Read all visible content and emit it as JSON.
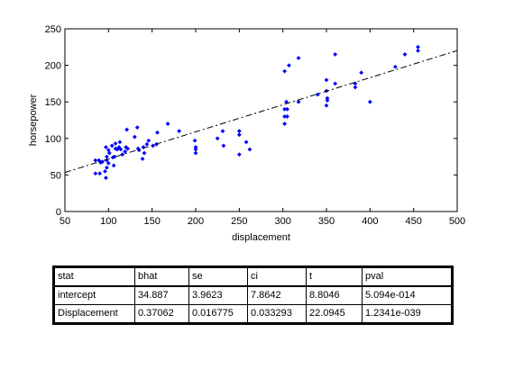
{
  "chart_data": {
    "type": "scatter",
    "xlabel": "displacement",
    "ylabel": "horsepower",
    "xlim": [
      50,
      500
    ],
    "ylim": [
      0,
      250
    ],
    "xticks": [
      50,
      100,
      150,
      200,
      250,
      300,
      350,
      400,
      450,
      500
    ],
    "yticks": [
      0,
      50,
      100,
      150,
      200,
      250
    ],
    "grid": false,
    "point_color": "#0000ff",
    "fit_line_color": "#000000",
    "fit_line_style": "dash-dot",
    "fit_line": {
      "intercept": 34.887,
      "slope": 0.37062
    },
    "points": [
      [
        85,
        52
      ],
      [
        85,
        70
      ],
      [
        89,
        70
      ],
      [
        90,
        52
      ],
      [
        91,
        67
      ],
      [
        93,
        68
      ],
      [
        96,
        55
      ],
      [
        97,
        46
      ],
      [
        97,
        88
      ],
      [
        98,
        60
      ],
      [
        98,
        70
      ],
      [
        98,
        75
      ],
      [
        100,
        66
      ],
      [
        100,
        84
      ],
      [
        101,
        80
      ],
      [
        104,
        90
      ],
      [
        105,
        74
      ],
      [
        106,
        63
      ],
      [
        107,
        75
      ],
      [
        108,
        86
      ],
      [
        108,
        93
      ],
      [
        110,
        85
      ],
      [
        112,
        88
      ],
      [
        113,
        95
      ],
      [
        114,
        85
      ],
      [
        116,
        78
      ],
      [
        119,
        82
      ],
      [
        120,
        88
      ],
      [
        121,
        112
      ],
      [
        122,
        86
      ],
      [
        130,
        102
      ],
      [
        133,
        115
      ],
      [
        134,
        86
      ],
      [
        135,
        84
      ],
      [
        139,
        72
      ],
      [
        140,
        88
      ],
      [
        141,
        80
      ],
      [
        144,
        92
      ],
      [
        146,
        97
      ],
      [
        151,
        90
      ],
      [
        155,
        92
      ],
      [
        156,
        108
      ],
      [
        168,
        120
      ],
      [
        181,
        110
      ],
      [
        199,
        97
      ],
      [
        200,
        85
      ],
      [
        200,
        88
      ],
      [
        200,
        80
      ],
      [
        225,
        100
      ],
      [
        231,
        110
      ],
      [
        232,
        90
      ],
      [
        250,
        78
      ],
      [
        250,
        105
      ],
      [
        250,
        110
      ],
      [
        258,
        95
      ],
      [
        262,
        85
      ],
      [
        302,
        192
      ],
      [
        302,
        120
      ],
      [
        302,
        130
      ],
      [
        302,
        140
      ],
      [
        304,
        150
      ],
      [
        305,
        140
      ],
      [
        305,
        130
      ],
      [
        307,
        200
      ],
      [
        318,
        210
      ],
      [
        318,
        150
      ],
      [
        340,
        160
      ],
      [
        350,
        145
      ],
      [
        350,
        165
      ],
      [
        350,
        180
      ],
      [
        351,
        155
      ],
      [
        351,
        152
      ],
      [
        360,
        175
      ],
      [
        360,
        215
      ],
      [
        383,
        170
      ],
      [
        383,
        175
      ],
      [
        390,
        190
      ],
      [
        400,
        150
      ],
      [
        429,
        198
      ],
      [
        440,
        215
      ],
      [
        455,
        220
      ],
      [
        455,
        225
      ]
    ]
  },
  "stats_table": {
    "headers": [
      "stat",
      "bhat",
      "se",
      "ci",
      "t",
      "pval"
    ],
    "rows": [
      [
        "intercept",
        "34.887",
        "3.9623",
        "7.8642",
        "8.8046",
        "5.094e-014"
      ],
      [
        "Displacement",
        "0.37062",
        "0.016775",
        "0.033293",
        "22.0945",
        "1.2341e-039"
      ]
    ]
  }
}
